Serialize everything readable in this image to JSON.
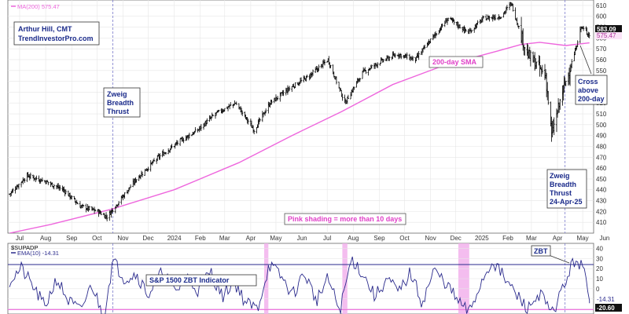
{
  "colors": {
    "price": "#000000",
    "ma": "#ee66dd",
    "ema": "#2a2a8c",
    "shade": "#f2b2ec",
    "annotation": "#1a2a8a",
    "grid": "#e6e6e6",
    "vline": "#7a7acc"
  },
  "price_panel": {
    "legend_ma": "MA(200) 575.47",
    "credit_line1": "Arthur Hill, CMT",
    "credit_line2": "TrendInvestorPro.com",
    "zbt1_line1": "Zweig",
    "zbt1_line2": "Breadth",
    "zbt1_line3": "Thrust",
    "sma_label": "200-day SMA",
    "cross_line1": "Cross",
    "cross_line2": "above",
    "cross_line3": "200-day",
    "zbt2_line1": "Zweig",
    "zbt2_line2": "Breadth",
    "zbt2_line3": "Thrust",
    "zbt2_line4": "24-Apr-25",
    "pink_label": "Pink shading = more than 10 days",
    "price_badge": "583.09",
    "ma_badge": "575.47"
  },
  "indicator_panel": {
    "legend_symbol": "$SUPADP",
    "legend_ema": "EMA(10) -14.31",
    "indicator_label": "S&P 1500 ZBT Indicator",
    "zbt_label": "ZBT",
    "ema_badge": "-14.31",
    "lower_badge": "-20.60"
  },
  "chart_data": [
    {
      "type": "bar",
      "subtype": "ohlc",
      "series": [
        {
          "name": "",
          "x": [
            "2023-07-03",
            "2023-07-24",
            "2023-08-14",
            "2023-09-05",
            "2023-09-25",
            "2023-10-16",
            "2023-10-27",
            "2023-11-13",
            "2023-12-01",
            "2023-12-27",
            "2024-01-22",
            "2024-02-12",
            "2024-03-04",
            "2024-03-28",
            "2024-04-19",
            "2024-05-08",
            "2024-06-03",
            "2024-06-24",
            "2024-07-16",
            "2024-08-05",
            "2024-08-26",
            "2024-09-16",
            "2024-10-07",
            "2024-10-28",
            "2024-11-15",
            "2024-12-06",
            "2024-12-30",
            "2025-01-17",
            "2025-02-07",
            "2025-02-19",
            "2025-03-10",
            "2025-04-01",
            "2025-04-08",
            "2025-04-21",
            "2025-05-05",
            "2025-05-13",
            "2025-05-23"
          ],
          "values": [
            436,
            453,
            448,
            440,
            425,
            420,
            415,
            432,
            450,
            470,
            485,
            495,
            510,
            520,
            495,
            520,
            535,
            545,
            560,
            520,
            548,
            558,
            565,
            560,
            578,
            598,
            585,
            598,
            600,
            612,
            565,
            545,
            490,
            530,
            565,
            590,
            583
          ]
        },
        {
          "name": "200-day SMA",
          "x": [
            "2023-07-03",
            "2023-08-21",
            "2023-11-01",
            "2024-01-15",
            "2024-04-01",
            "2024-06-03",
            "2024-08-01",
            "2024-10-01",
            "2024-12-02",
            "2025-02-03",
            "2025-03-03",
            "2025-03-25",
            "2025-04-25",
            "2025-05-23"
          ],
          "values": [
            400,
            408,
            422,
            440,
            465,
            490,
            512,
            537,
            555,
            568,
            574,
            576,
            573,
            575.47
          ]
        }
      ],
      "ylim": [
        400,
        615
      ],
      "xlim": [
        "2023-07-01",
        "2025-05-28"
      ],
      "yticks": [
        410,
        420,
        430,
        440,
        450,
        460,
        470,
        480,
        490,
        500,
        510,
        520,
        530,
        540,
        550,
        560,
        570,
        580,
        590,
        600,
        610
      ],
      "xtick_labels": [
        {
          "date": "2023-07-15",
          "label": "Jul"
        },
        {
          "date": "2023-08-15",
          "label": "Aug"
        },
        {
          "date": "2023-09-15",
          "label": "Sep"
        },
        {
          "date": "2023-10-15",
          "label": "Oct"
        },
        {
          "date": "2023-11-15",
          "label": "Nov"
        },
        {
          "date": "2023-12-15",
          "label": "Dec"
        },
        {
          "date": "2024-01-15",
          "label": "2024"
        },
        {
          "date": "2024-02-15",
          "label": "Feb"
        },
        {
          "date": "2024-03-15",
          "label": "Mar"
        },
        {
          "date": "2024-04-15",
          "label": "Apr"
        },
        {
          "date": "2024-05-15",
          "label": "May"
        },
        {
          "date": "2024-06-15",
          "label": "Jun"
        },
        {
          "date": "2024-07-15",
          "label": "Jul"
        },
        {
          "date": "2024-08-15",
          "label": "Aug"
        },
        {
          "date": "2024-09-15",
          "label": "Sep"
        },
        {
          "date": "2024-10-15",
          "label": "Oct"
        },
        {
          "date": "2024-11-15",
          "label": "Nov"
        },
        {
          "date": "2024-12-15",
          "label": "Dec"
        },
        {
          "date": "2025-01-15",
          "label": "2025"
        },
        {
          "date": "2025-02-15",
          "label": "Feb"
        },
        {
          "date": "2025-03-15",
          "label": "Mar"
        },
        {
          "date": "2025-04-15",
          "label": "Apr"
        },
        {
          "date": "2025-05-15",
          "label": "May"
        },
        {
          "date": "2025-06-10",
          "label": "Jun"
        }
      ],
      "vertical_markers": [
        "2023-11-03",
        "2025-04-24"
      ],
      "grid": true
    },
    {
      "type": "line",
      "series": [
        {
          "name": "",
          "x": [
            "2023-07-03",
            "2023-07-17",
            "2023-07-31",
            "2023-08-14",
            "2023-08-28",
            "2023-09-11",
            "2023-09-25",
            "2023-10-09",
            "2023-10-23",
            "2023-11-03",
            "2023-11-17",
            "2023-12-01",
            "2023-12-15",
            "2024-01-02",
            "2024-01-16",
            "2024-01-30",
            "2024-02-13",
            "2024-02-27",
            "2024-03-12",
            "2024-03-26",
            "2024-04-09",
            "2024-04-23",
            "2024-05-07",
            "2024-05-21",
            "2024-06-04",
            "2024-06-18",
            "2024-07-02",
            "2024-07-16",
            "2024-07-30",
            "2024-08-13",
            "2024-08-27",
            "2024-09-10",
            "2024-09-24",
            "2024-10-08",
            "2024-10-22",
            "2024-11-05",
            "2024-11-19",
            "2024-12-03",
            "2024-12-17",
            "2024-12-31",
            "2025-01-14",
            "2025-01-28",
            "2025-02-11",
            "2025-02-25",
            "2025-03-11",
            "2025-03-25",
            "2025-04-08",
            "2025-04-24",
            "2025-05-06",
            "2025-05-16",
            "2025-05-23"
          ],
          "values": [
            8,
            20,
            2,
            -18,
            10,
            -12,
            -22,
            4,
            -28,
            28,
            10,
            15,
            -6,
            18,
            -4,
            12,
            -2,
            18,
            -8,
            8,
            -14,
            -20,
            24,
            12,
            -6,
            16,
            -12,
            10,
            -22,
            30,
            14,
            -8,
            10,
            -4,
            16,
            -14,
            18,
            6,
            -12,
            -24,
            6,
            28,
            10,
            -6,
            -20,
            -4,
            -26,
            6,
            30,
            20,
            -14.31
          ]
        }
      ],
      "ylim": [
        -25,
        45
      ],
      "yticks": [
        -20,
        -10,
        0,
        10,
        20,
        30,
        40
      ],
      "reference_lines": [
        24,
        -20.6
      ],
      "shaded_ranges": [
        [
          "2024-05-01",
          "2024-05-06"
        ],
        [
          "2024-08-02",
          "2024-08-08"
        ],
        [
          "2024-12-18",
          "2024-12-31"
        ]
      ],
      "grid": true
    }
  ]
}
